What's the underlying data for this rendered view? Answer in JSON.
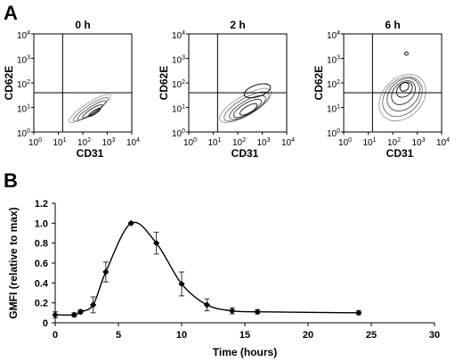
{
  "panels": {
    "a_label": "A",
    "b_label": "B"
  },
  "chart_data": [
    {
      "type": "contour",
      "panel": "A",
      "plots": [
        {
          "title": "0 h",
          "xlabel": "CD31",
          "ylabel": "CD62E"
        },
        {
          "title": "2 h",
          "xlabel": "CD31",
          "ylabel": "CD62E"
        },
        {
          "title": "6 h",
          "xlabel": "CD31",
          "ylabel": "CD62E"
        }
      ],
      "x_scale": "log",
      "y_scale": "log",
      "xlim": [
        1,
        10000
      ],
      "ylim": [
        1,
        10000
      ],
      "x_ticks": [
        {
          "base": "10",
          "exp": "0"
        },
        {
          "base": "10",
          "exp": "1"
        },
        {
          "base": "10",
          "exp": "2"
        },
        {
          "base": "10",
          "exp": "3"
        },
        {
          "base": "10",
          "exp": "4"
        }
      ],
      "y_ticks": [
        {
          "base": "10",
          "exp": "0"
        },
        {
          "base": "10",
          "exp": "1"
        },
        {
          "base": "10",
          "exp": "2"
        },
        {
          "base": "10",
          "exp": "3"
        },
        {
          "base": "10",
          "exp": "4"
        }
      ],
      "quadrant_gates": {
        "x": 15,
        "y": 40
      }
    },
    {
      "type": "line",
      "panel": "B",
      "xlabel": "Time (hours)",
      "ylabel": "GMFI (relative to max)",
      "xlim": [
        0,
        30
      ],
      "ylim": [
        0,
        1.2
      ],
      "x_ticks": [
        "0",
        "5",
        "10",
        "15",
        "20",
        "25",
        "30"
      ],
      "y_ticks": [
        "0",
        "0.2",
        "0.4",
        "0.6",
        "0.8",
        "1.0",
        "1.2"
      ],
      "marker": "diamond",
      "points": [
        {
          "x": 0,
          "y": 0.08,
          "err": 0.03
        },
        {
          "x": 1.5,
          "y": 0.08,
          "err": 0.02
        },
        {
          "x": 2,
          "y": 0.11,
          "err": 0.02
        },
        {
          "x": 3,
          "y": 0.18,
          "err": 0.08
        },
        {
          "x": 4,
          "y": 0.51,
          "err": 0.1
        },
        {
          "x": 6,
          "y": 1.0,
          "err": 0.01
        },
        {
          "x": 8,
          "y": 0.8,
          "err": 0.11
        },
        {
          "x": 10,
          "y": 0.39,
          "err": 0.12
        },
        {
          "x": 12,
          "y": 0.18,
          "err": 0.06
        },
        {
          "x": 14,
          "y": 0.12,
          "err": 0.03
        },
        {
          "x": 16,
          "y": 0.11,
          "err": 0.02
        },
        {
          "x": 24,
          "y": 0.1,
          "err": 0.02
        }
      ]
    }
  ]
}
